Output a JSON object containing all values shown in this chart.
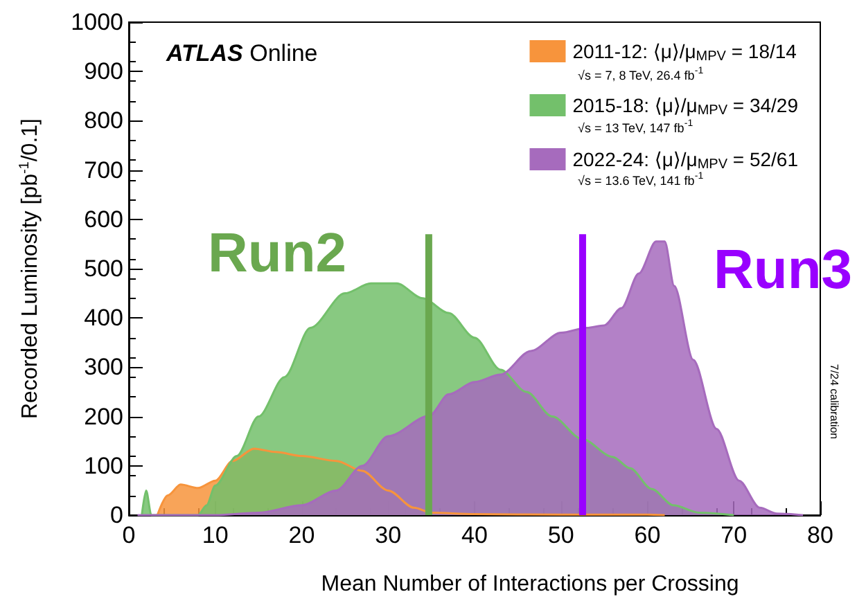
{
  "chart_data": {
    "type": "area",
    "xlabel": "Mean Number of Interactions per Crossing",
    "ylabel": "Recorded Luminosity [pb$^{-1}$/0.1]",
    "xlim": [
      0,
      80
    ],
    "xticks": [
      0,
      10,
      20,
      30,
      40,
      50,
      60,
      70,
      80
    ],
    "ylim": [
      0,
      1000
    ],
    "yticks": [
      0,
      100,
      200,
      300,
      400,
      500,
      600,
      700,
      800,
      900,
      1000
    ],
    "grid": false,
    "legend": "top right",
    "marker": "none",
    "series": [
      {
        "name": "2011-12: ⟨μ⟩/μ$_{MPV}$ = 18/14",
        "color": "#f7943c",
        "x": [
          3.3,
          4.5,
          6,
          8,
          10,
          12,
          14.5,
          17,
          20,
          24,
          27,
          30,
          33,
          35,
          40,
          50,
          60,
          62
        ],
        "values": [
          0,
          40,
          62,
          55,
          70,
          110,
          135,
          128,
          120,
          110,
          90,
          50,
          15,
          5,
          2,
          1,
          1,
          0
        ]
      },
      {
        "name": "2015-18: ⟨μ⟩/μ$_{MPV}$ = 34/29",
        "color": "#73c06b",
        "x": [
          1.5,
          2,
          2.6,
          8,
          9,
          10,
          12.5,
          15,
          18,
          21,
          25,
          28,
          31,
          34,
          37,
          40,
          43,
          46,
          49,
          52.4,
          56,
          58,
          60.5,
          63,
          66,
          70
        ],
        "values": [
          0,
          50,
          0,
          0,
          20,
          60,
          120,
          200,
          280,
          380,
          450,
          470,
          470,
          440,
          410,
          360,
          295,
          250,
          200,
          155,
          118,
          95,
          53,
          20,
          5,
          0
        ]
      },
      {
        "name": "2022-24: ⟨μ⟩/μ$_{MPV}$ = 52/61",
        "color": "#a66bbd",
        "x": [
          1,
          10,
          15,
          20,
          24,
          27,
          30,
          34.8,
          37,
          40,
          43,
          46.5,
          50,
          53,
          55,
          57,
          59,
          61,
          62,
          63.1,
          65.3,
          68,
          70.6,
          73,
          75,
          78
        ],
        "values": [
          0,
          0,
          5,
          20,
          50,
          100,
          160,
          202,
          245,
          270,
          285,
          333,
          370,
          380,
          385,
          420,
          490,
          555,
          555,
          465,
          315,
          175,
          70,
          15,
          3,
          0
        ]
      },
      {
        "type": "line",
        "color": "#6aa84f",
        "x": [
          34.7,
          34.7
        ],
        "values": [
          0,
          570
        ]
      },
      {
        "type": "line",
        "color": "#9900ff",
        "x": [
          52.5,
          52.5
        ],
        "values": [
          0,
          570
        ]
      }
    ],
    "annotations": [
      "ATLAS Online",
      "√s = 7, 8 TeV, 26.4 fb$^{-1}$",
      "√s = 13 TeV, 147 fb$^{-1}$",
      "√s = 13.6 TeV, 141 fb$^{-1}$",
      "Run2",
      "Run3",
      "7/24 calibration"
    ]
  }
}
